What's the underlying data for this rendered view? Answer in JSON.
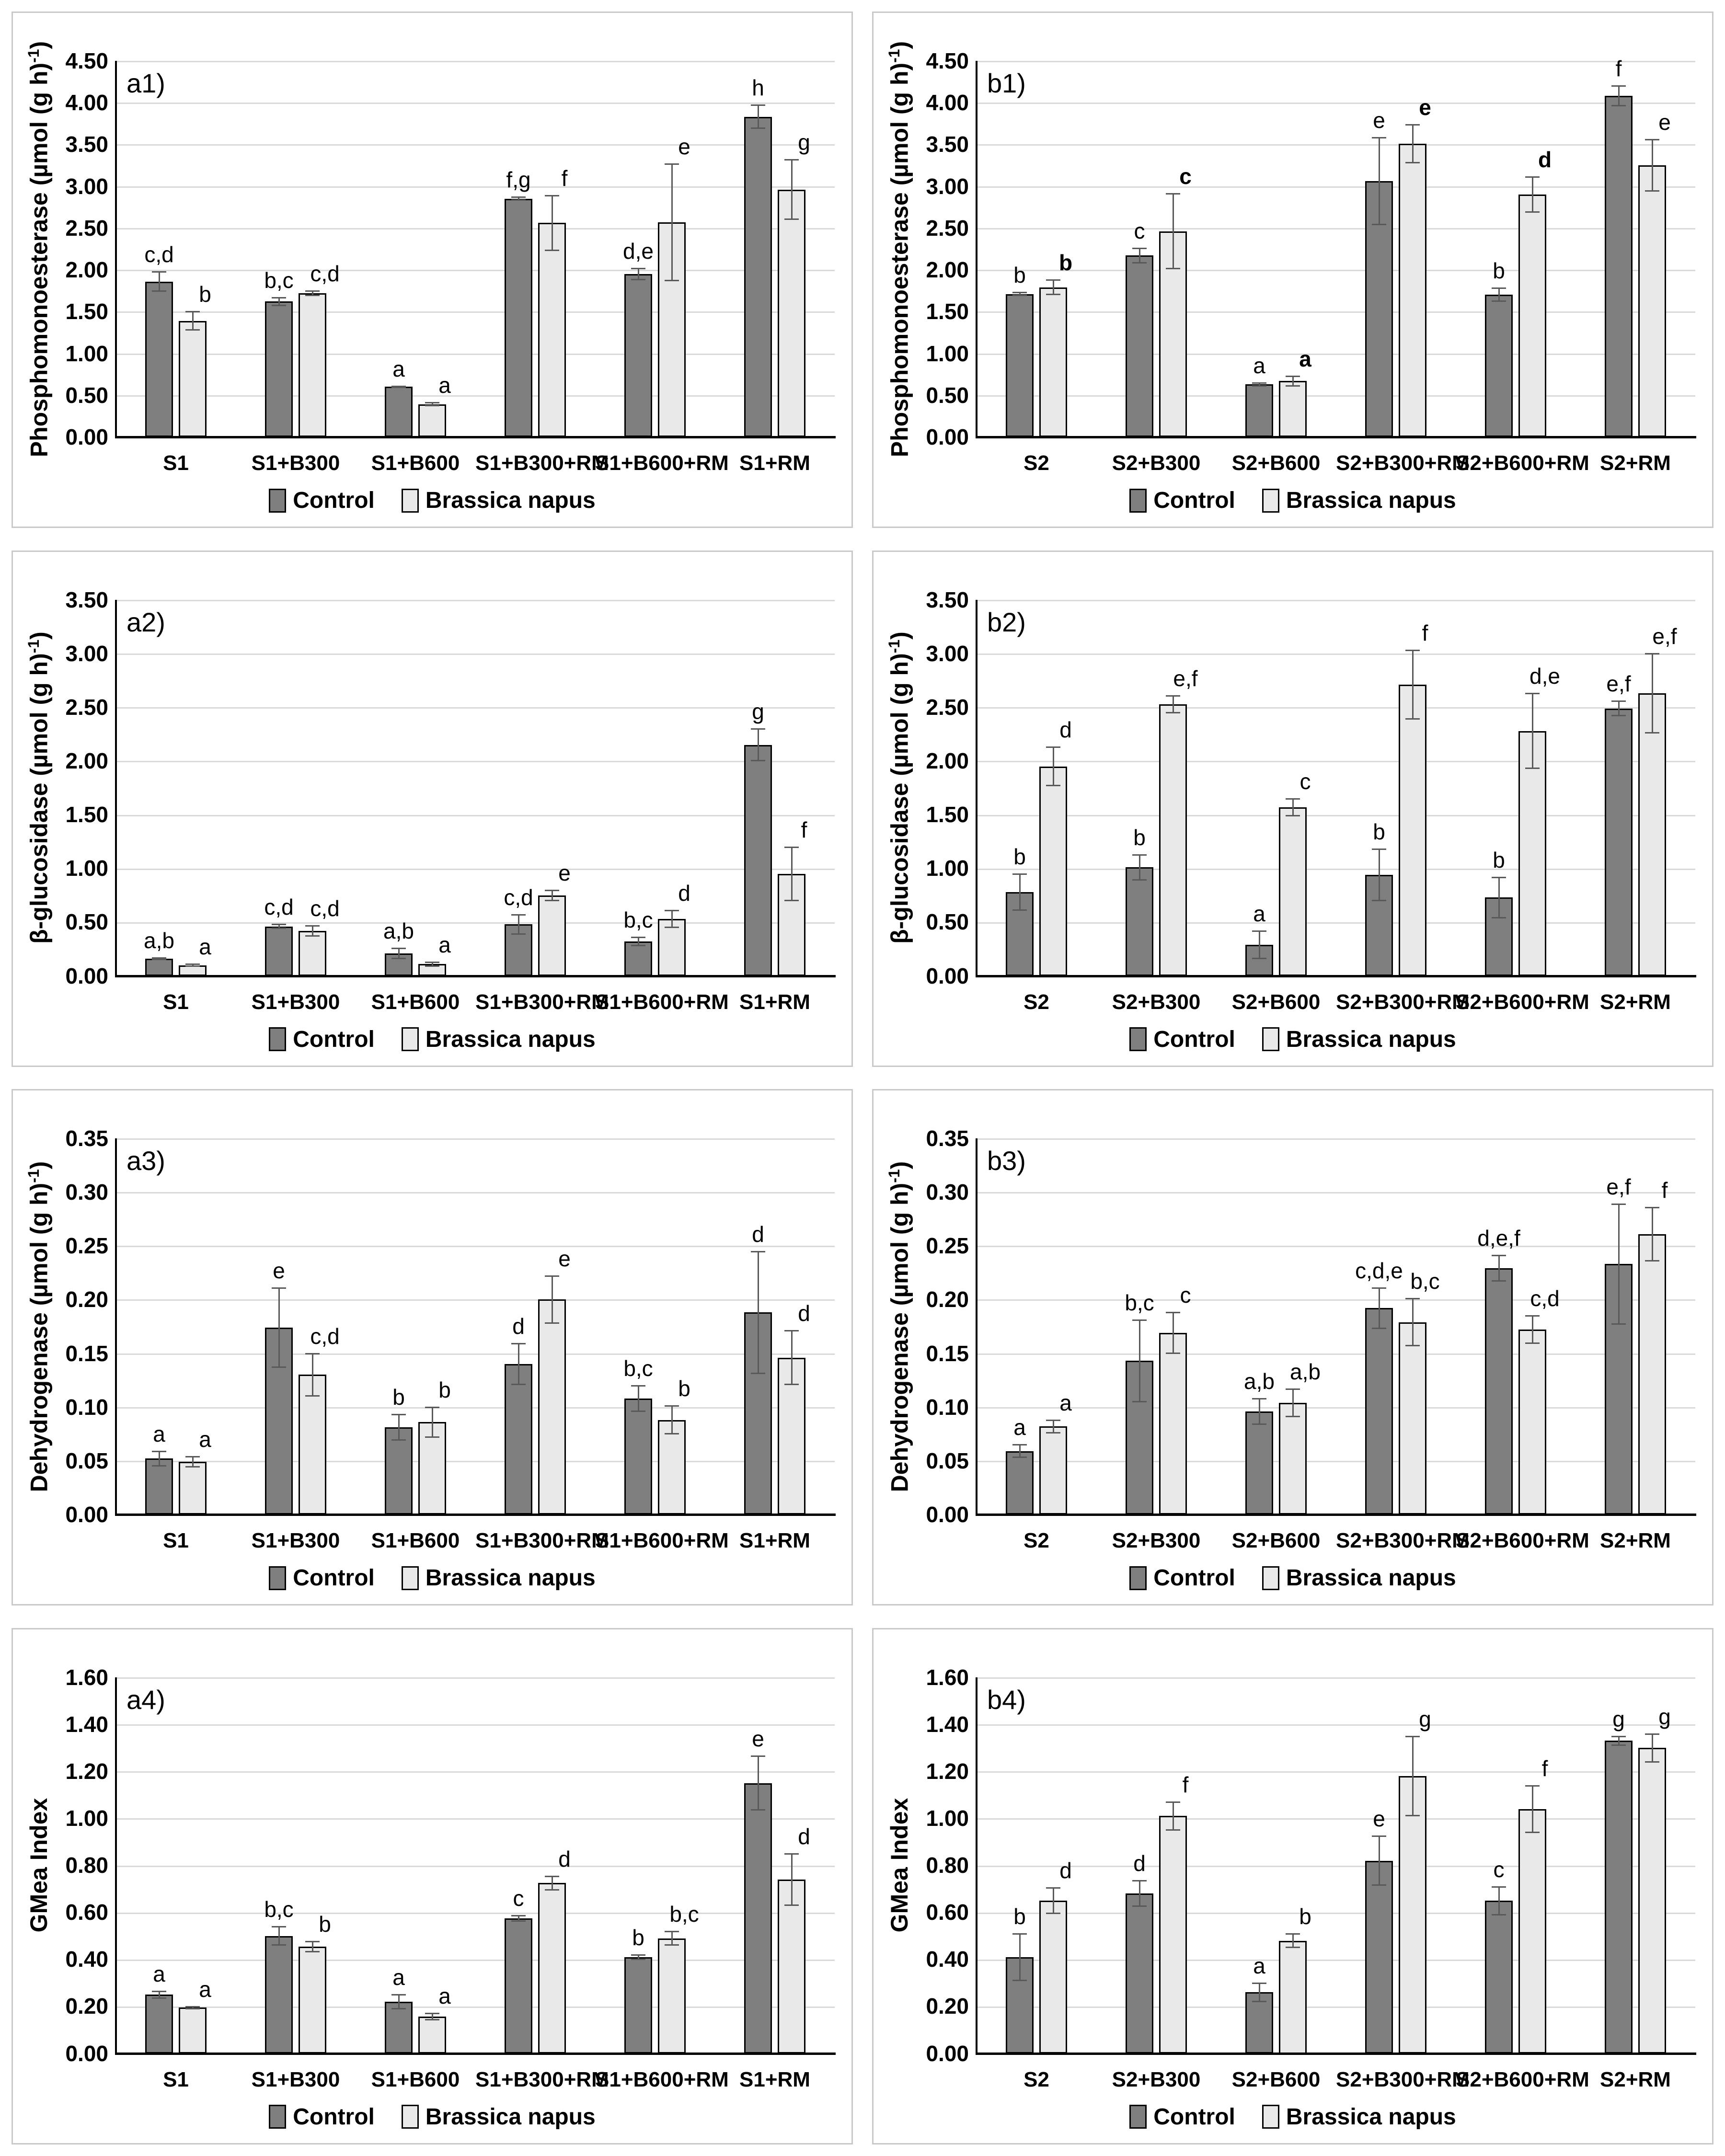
{
  "figure": {
    "background": "#ffffff",
    "panel_border_color": "#c9c9c9",
    "legend_position": "bottom",
    "grid": true
  },
  "colors": {
    "control_fill": "#7f7f7f",
    "brassica_fill": "#e9e9e9",
    "bar_border": "#000000",
    "error_bar": "#595959",
    "gridline": "#d9d9d9",
    "axis_line": "#000000"
  },
  "chart_data": [
    {
      "id": "a1",
      "panel_label": "a1)",
      "type": "bar",
      "ylabel": {
        "pre": "Phosphomonoesterase (µmol (g h)",
        "sup": "-1",
        "post": ")"
      },
      "ylim": [
        0,
        4.5
      ],
      "yticks": [
        "4.50",
        "4.00",
        "3.50",
        "3.00",
        "2.50",
        "2.00",
        "1.50",
        "1.00",
        "0.50",
        "0.00"
      ],
      "categories": [
        "S1",
        "S1+B300",
        "S1+B600",
        "S1+B300+RM",
        "S1+B600+RM",
        "S1+RM"
      ],
      "series": [
        {
          "name": "Control",
          "values": [
            1.86,
            1.62,
            0.6,
            2.85,
            1.95,
            3.83
          ],
          "errors": [
            0.12,
            0.05,
            0.01,
            0.02,
            0.07,
            0.14
          ],
          "letters": [
            "c,d",
            "b,c",
            "a",
            "f,g",
            "d,e",
            "h"
          ]
        },
        {
          "name": "Brassica napus",
          "values": [
            1.39,
            1.72,
            0.39,
            2.56,
            2.57,
            2.96
          ],
          "errors": [
            0.11,
            0.03,
            0.02,
            0.33,
            0.7,
            0.36
          ],
          "letters": [
            "b",
            "c,d",
            "a",
            "f",
            "e",
            "g"
          ]
        }
      ]
    },
    {
      "id": "b1",
      "panel_label": "b1)",
      "type": "bar",
      "ylabel": {
        "pre": "Phosphomonoesterase (µmol (g h)",
        "sup": "-1",
        "post": ")"
      },
      "ylim": [
        0,
        4.5
      ],
      "yticks": [
        "4.50",
        "4.00",
        "3.50",
        "3.00",
        "2.50",
        "2.00",
        "1.50",
        "1.00",
        "0.50",
        "0.00"
      ],
      "categories": [
        "S2",
        "S2+B300",
        "S2+B600",
        "S2+B300+RM",
        "S2+B600+RM",
        "S2+RM"
      ],
      "series": [
        {
          "name": "Control",
          "values": [
            1.71,
            2.17,
            0.63,
            3.06,
            1.7,
            4.08
          ],
          "errors": [
            0.02,
            0.09,
            0.02,
            0.52,
            0.08,
            0.12
          ],
          "letters": [
            "b",
            "c",
            "a",
            "e",
            "b",
            "f"
          ]
        },
        {
          "name": "Brassica napus",
          "values": [
            1.79,
            2.46,
            0.67,
            3.51,
            2.9,
            3.25
          ],
          "errors": [
            0.09,
            0.45,
            0.06,
            0.23,
            0.21,
            0.31
          ],
          "letters": [
            "b",
            "c",
            "a",
            "e",
            "d",
            "e"
          ],
          "letters_bold": [
            true,
            true,
            true,
            true,
            true,
            false
          ]
        }
      ]
    },
    {
      "id": "a2",
      "panel_label": "a2)",
      "type": "bar",
      "ylabel": {
        "pre": "β-glucosidase (µmol (g h)",
        "sup": "-1",
        "post": ")"
      },
      "ylim": [
        0,
        3.5
      ],
      "yticks": [
        "3.50",
        "3.00",
        "2.50",
        "2.00",
        "1.50",
        "1.00",
        "0.50",
        "0.00"
      ],
      "categories": [
        "S1",
        "S1+B300",
        "S1+B600",
        "S1+B300+RM",
        "S1+B600+RM",
        "S1+RM"
      ],
      "series": [
        {
          "name": "Control",
          "values": [
            0.16,
            0.46,
            0.21,
            0.48,
            0.32,
            2.15
          ],
          "errors": [
            0.01,
            0.02,
            0.05,
            0.09,
            0.04,
            0.15
          ],
          "letters": [
            "a,b",
            "c,d",
            "a,b",
            "c,d",
            "b,c",
            "g"
          ]
        },
        {
          "name": "Brassica napus",
          "values": [
            0.1,
            0.42,
            0.11,
            0.75,
            0.53,
            0.95
          ],
          "errors": [
            0.01,
            0.05,
            0.02,
            0.05,
            0.08,
            0.25
          ],
          "letters": [
            "a",
            "c,d",
            "a",
            "e",
            "d",
            "f"
          ]
        }
      ]
    },
    {
      "id": "b2",
      "panel_label": "b2)",
      "type": "bar",
      "ylabel": {
        "pre": "β-glucosidase (µmol (g h)",
        "sup": "-1",
        "post": ")"
      },
      "ylim": [
        0,
        3.5
      ],
      "yticks": [
        "3.50",
        "3.00",
        "2.50",
        "2.00",
        "1.50",
        "1.00",
        "0.50",
        "0.00"
      ],
      "categories": [
        "S2",
        "S2+B300",
        "S2+B600",
        "S2+B300+RM",
        "S2+B600+RM",
        "S2+RM"
      ],
      "series": [
        {
          "name": "Control",
          "values": [
            0.78,
            1.01,
            0.29,
            0.94,
            0.73,
            2.49
          ],
          "errors": [
            0.17,
            0.12,
            0.13,
            0.24,
            0.19,
            0.07
          ],
          "letters": [
            "b",
            "b",
            "a",
            "b",
            "b",
            "e,f"
          ]
        },
        {
          "name": "Brassica napus",
          "values": [
            1.95,
            2.53,
            1.57,
            2.71,
            2.28,
            2.63
          ],
          "errors": [
            0.18,
            0.08,
            0.08,
            0.32,
            0.35,
            0.37
          ],
          "letters": [
            "d",
            "e,f",
            "c",
            "f",
            "d,e",
            "e,f"
          ]
        }
      ]
    },
    {
      "id": "a3",
      "panel_label": "a3)",
      "type": "bar",
      "ylabel": {
        "pre": "Dehydrogenase (µmol (g h)",
        "sup": "-1",
        "post": ")"
      },
      "ylim": [
        0,
        0.35
      ],
      "yticks": [
        "0.35",
        "0.30",
        "0.25",
        "0.20",
        "0.15",
        "0.10",
        "0.05",
        "0.00"
      ],
      "categories": [
        "S1",
        "S1+B300",
        "S1+B600",
        "S1+B300+RM",
        "S1+B600+RM",
        "S1+RM"
      ],
      "series": [
        {
          "name": "Control",
          "values": [
            0.052,
            0.174,
            0.081,
            0.14,
            0.108,
            0.188
          ],
          "errors": [
            0.007,
            0.037,
            0.012,
            0.019,
            0.012,
            0.057
          ],
          "letters": [
            "a",
            "e",
            "b",
            "d",
            "b,c",
            "d"
          ]
        },
        {
          "name": "Brassica napus",
          "values": [
            0.049,
            0.13,
            0.086,
            0.2,
            0.088,
            0.146
          ],
          "errors": [
            0.005,
            0.02,
            0.014,
            0.022,
            0.013,
            0.025
          ],
          "letters": [
            "a",
            "c,d",
            "b",
            "e",
            "b",
            "d"
          ]
        }
      ]
    },
    {
      "id": "b3",
      "panel_label": "b3)",
      "type": "bar",
      "ylabel": {
        "pre": "Dehydrogenase (µmol (g h)",
        "sup": "-1",
        "post": ")"
      },
      "ylim": [
        0,
        0.35
      ],
      "yticks": [
        "0.35",
        "0.30",
        "0.25",
        "0.20",
        "0.15",
        "0.10",
        "0.05",
        "0.00"
      ],
      "categories": [
        "S2",
        "S2+B300",
        "S2+B600",
        "S2+B300+RM",
        "S2+B600+RM",
        "S2+RM"
      ],
      "series": [
        {
          "name": "Control",
          "values": [
            0.059,
            0.143,
            0.096,
            0.192,
            0.229,
            0.233
          ],
          "errors": [
            0.006,
            0.038,
            0.012,
            0.019,
            0.012,
            0.056
          ],
          "letters": [
            "a",
            "b,c",
            "a,b",
            "c,d,e",
            "d,e,f",
            "e,f"
          ]
        },
        {
          "name": "Brassica napus",
          "values": [
            0.082,
            0.169,
            0.104,
            0.179,
            0.172,
            0.261
          ],
          "errors": [
            0.006,
            0.019,
            0.013,
            0.022,
            0.013,
            0.025
          ],
          "letters": [
            "a",
            "c",
            "a,b",
            "b,c",
            "c,d",
            "f"
          ]
        }
      ]
    },
    {
      "id": "a4",
      "panel_label": "a4)",
      "type": "bar",
      "ylabel": {
        "pre": "GMea Index",
        "sup": "",
        "post": ""
      },
      "ylim": [
        0,
        1.6
      ],
      "yticks": [
        "1.60",
        "1.40",
        "1.20",
        "1.00",
        "0.80",
        "0.60",
        "0.40",
        "0.20",
        "0.00"
      ],
      "categories": [
        "S1",
        "S1+B300",
        "S1+B600",
        "S1+B300+RM",
        "S1+B600+RM",
        "S1+RM"
      ],
      "series": [
        {
          "name": "Control",
          "values": [
            0.25,
            0.5,
            0.22,
            0.575,
            0.41,
            1.15
          ],
          "errors": [
            0.015,
            0.04,
            0.03,
            0.012,
            0.01,
            0.115
          ],
          "letters": [
            "a",
            "b,c",
            "a",
            "c",
            "b",
            "e"
          ]
        },
        {
          "name": "Brassica napus",
          "values": [
            0.195,
            0.455,
            0.157,
            0.725,
            0.49,
            0.74
          ],
          "errors": [
            0.005,
            0.022,
            0.015,
            0.03,
            0.03,
            0.11
          ],
          "letters": [
            "a",
            "b",
            "a",
            "d",
            "b,c",
            "d"
          ]
        }
      ]
    },
    {
      "id": "b4",
      "panel_label": "b4)",
      "type": "bar",
      "ylabel": {
        "pre": "GMea Index",
        "sup": "",
        "post": ""
      },
      "ylim": [
        0,
        1.6
      ],
      "yticks": [
        "1.60",
        "1.40",
        "1.20",
        "1.00",
        "0.80",
        "0.60",
        "0.40",
        "0.20",
        "0.00"
      ],
      "categories": [
        "S2",
        "S2+B300",
        "S2+B600",
        "S2+B300+RM",
        "S2+B600+RM",
        "S2+RM"
      ],
      "series": [
        {
          "name": "Control",
          "values": [
            0.41,
            0.68,
            0.26,
            0.82,
            0.65,
            1.33
          ],
          "errors": [
            0.1,
            0.055,
            0.04,
            0.105,
            0.06,
            0.02
          ],
          "letters": [
            "b",
            "d",
            "a",
            "e",
            "c",
            "g"
          ]
        },
        {
          "name": "Brassica napus",
          "values": [
            0.65,
            1.01,
            0.48,
            1.18,
            1.04,
            1.3
          ],
          "errors": [
            0.055,
            0.06,
            0.03,
            0.17,
            0.1,
            0.06
          ],
          "letters": [
            "d",
            "f",
            "b",
            "g",
            "f",
            "g"
          ]
        }
      ]
    }
  ]
}
